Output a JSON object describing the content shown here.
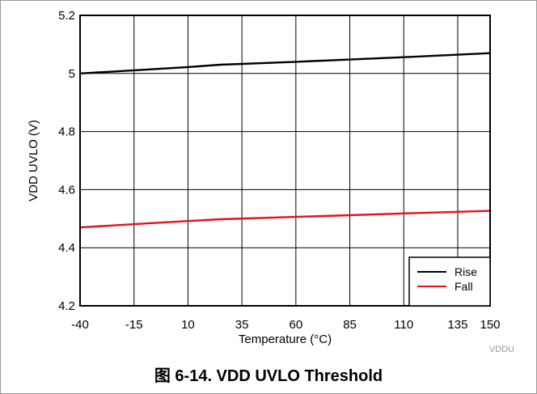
{
  "caption": "图 6-14. VDD UVLO Threshold",
  "watermark": "VDDU",
  "chart_data": {
    "type": "line",
    "xlabel": "Temperature (°C)",
    "ylabel": "VDD UVLO (V)",
    "xlim": [
      -40,
      150
    ],
    "ylim": [
      4.2,
      5.2
    ],
    "x_ticks": [
      -40,
      -15,
      10,
      35,
      60,
      85,
      110,
      135,
      150
    ],
    "x_tick_labels": [
      "-40",
      "-15",
      "10",
      "35",
      "60",
      "85",
      "110",
      "135",
      "150"
    ],
    "y_ticks": [
      4.2,
      4.4,
      4.6,
      4.8,
      5,
      5.2
    ],
    "y_tick_labels": [
      "4.2",
      "4.4",
      "4.6",
      "4.8",
      "5",
      "5.2"
    ],
    "grid": true,
    "legend_position": "bottom-right",
    "series": [
      {
        "name": "Rise",
        "color": "#000000",
        "x": [
          -40,
          -15,
          10,
          25,
          60,
          85,
          110,
          150
        ],
        "y": [
          5.0,
          5.011,
          5.022,
          5.03,
          5.04,
          5.048,
          5.056,
          5.07
        ]
      },
      {
        "name": "Fall",
        "color": "#e8101a",
        "x": [
          -40,
          -15,
          10,
          25,
          60,
          85,
          110,
          150
        ],
        "y": [
          4.47,
          4.481,
          4.492,
          4.498,
          4.506,
          4.512,
          4.518,
          4.527
        ]
      }
    ]
  }
}
